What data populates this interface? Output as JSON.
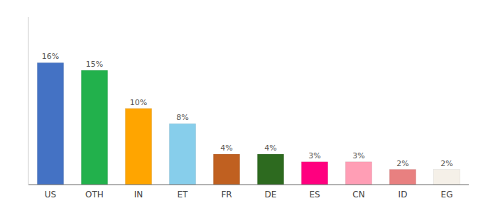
{
  "chart_data": {
    "type": "bar",
    "categories": [
      "US",
      "OTH",
      "IN",
      "ET",
      "FR",
      "DE",
      "ES",
      "CN",
      "ID",
      "EG"
    ],
    "values": [
      16,
      15,
      10,
      8,
      4,
      4,
      3,
      3,
      2,
      2
    ],
    "value_labels": [
      "16%",
      "15%",
      "10%",
      "8%",
      "4%",
      "4%",
      "3%",
      "3%",
      "2%",
      "2%"
    ],
    "colors": [
      "#4472c4",
      "#22b14c",
      "#ffa500",
      "#87ceeb",
      "#c06020",
      "#2d6a1f",
      "#ff007f",
      "#ff9eb5",
      "#e88080",
      "#f5f0e8"
    ],
    "ylim": [
      0,
      22
    ],
    "data_labels": true,
    "tick_labels": "x",
    "grid": false
  }
}
